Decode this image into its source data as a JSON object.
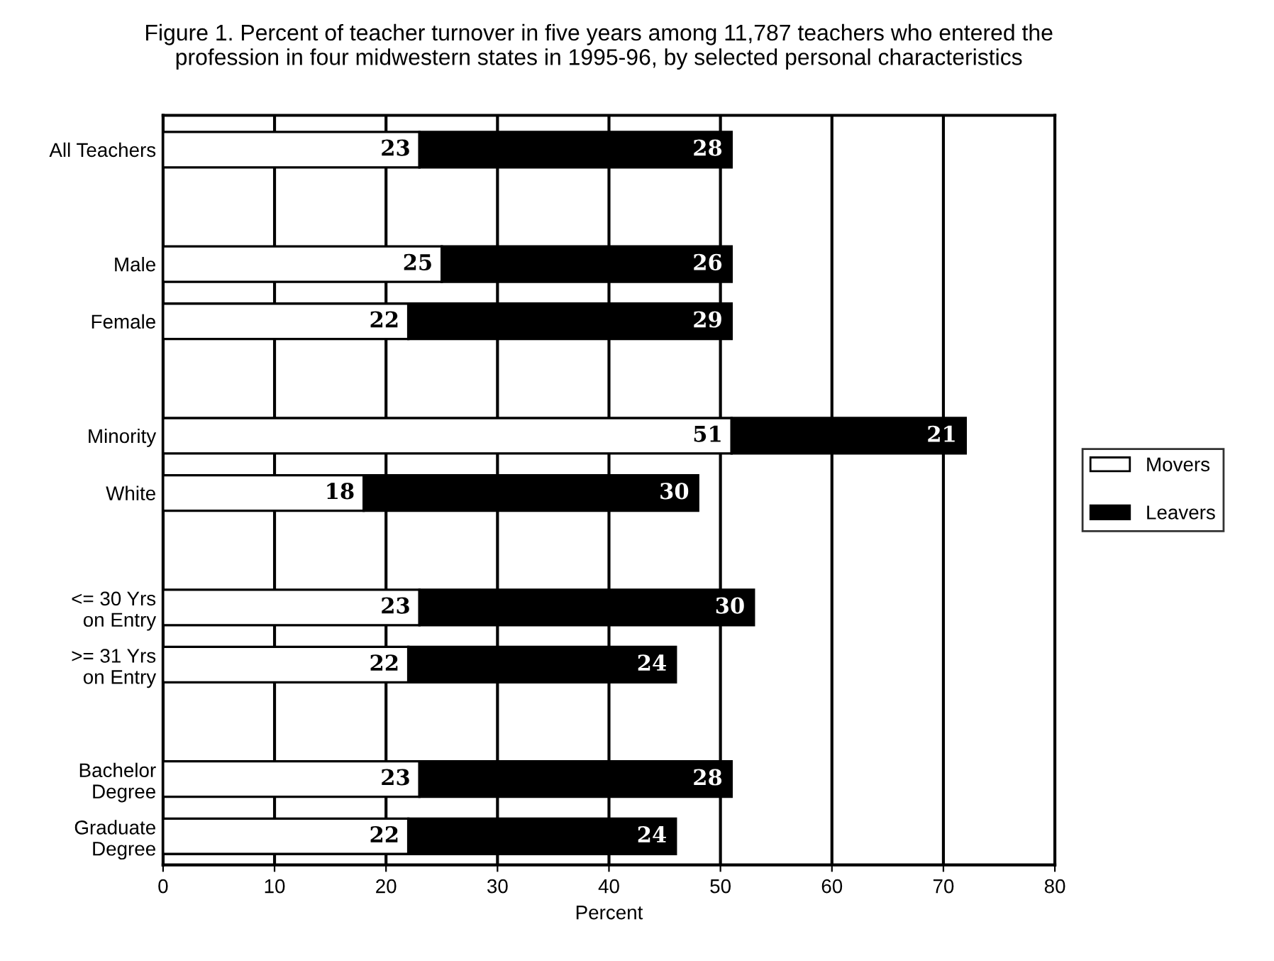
{
  "chart_data": {
    "type": "bar",
    "orientation": "horizontal",
    "stacked": true,
    "title": "Figure 1. Percent of teacher turnover in five years among 11,787 teachers who entered the\nprofession in four midwestern states in 1995-96, by selected personal characteristics",
    "xlabel": "Percent",
    "categories": [
      "All Teachers",
      null,
      "Male",
      "Female",
      null,
      "Minority",
      "White",
      null,
      "<= 30 Yrs\non Entry",
      ">= 31 Yrs\non Entry",
      null,
      "Bachelor\nDegree",
      "Graduate\nDegree"
    ],
    "series": [
      {
        "name": "Movers",
        "color": "#ffffff",
        "values": [
          23,
          null,
          25,
          22,
          null,
          51,
          18,
          null,
          23,
          22,
          null,
          23,
          22
        ]
      },
      {
        "name": "Leavers",
        "color": "#000000",
        "values": [
          28,
          null,
          26,
          29,
          null,
          21,
          30,
          null,
          30,
          24,
          null,
          28,
          24
        ]
      }
    ],
    "xlim": [
      0,
      80
    ],
    "xticks": [
      0,
      10,
      20,
      30,
      40,
      50,
      60,
      70,
      80
    ],
    "grid": "x",
    "legend": "right",
    "data_labels": true
  }
}
